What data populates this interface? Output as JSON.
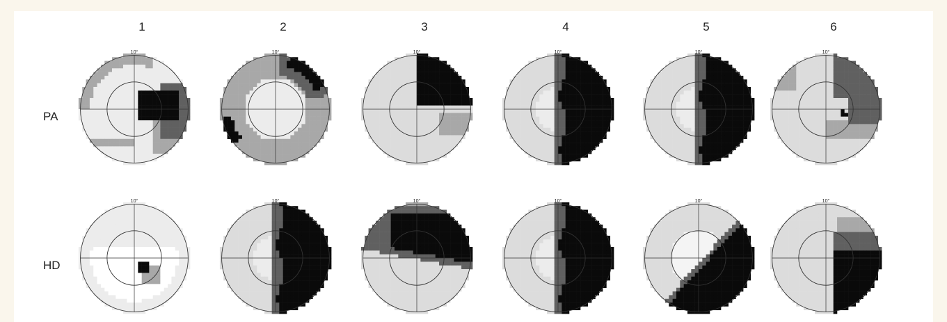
{
  "columns": [
    "1",
    "2",
    "3",
    "4",
    "5",
    "6"
  ],
  "rows": [
    {
      "label": "PA",
      "fields": [
        {
          "loss": "spot-right"
        },
        {
          "loss": "edge-patches"
        },
        {
          "loss": "upper-right-quadrant"
        },
        {
          "loss": "right-hemifield"
        },
        {
          "loss": "right-hemifield"
        },
        {
          "loss": "upper-right-gray"
        }
      ]
    },
    {
      "label": "HD",
      "fields": [
        {
          "loss": "central-spot"
        },
        {
          "loss": "right-hemifield"
        },
        {
          "loss": "upper-band"
        },
        {
          "loss": "right-hemifield"
        },
        {
          "loss": "upper-right-diagonal"
        },
        {
          "loss": "lower-right"
        }
      ]
    }
  ],
  "eccentricity_label": "10°",
  "colors": {
    "dense": "#0a0a0a",
    "relative": "#606060",
    "mild": "#a8a8a8",
    "background": "#dcdcdc",
    "faint": "#ececec",
    "circle": "#333333"
  }
}
